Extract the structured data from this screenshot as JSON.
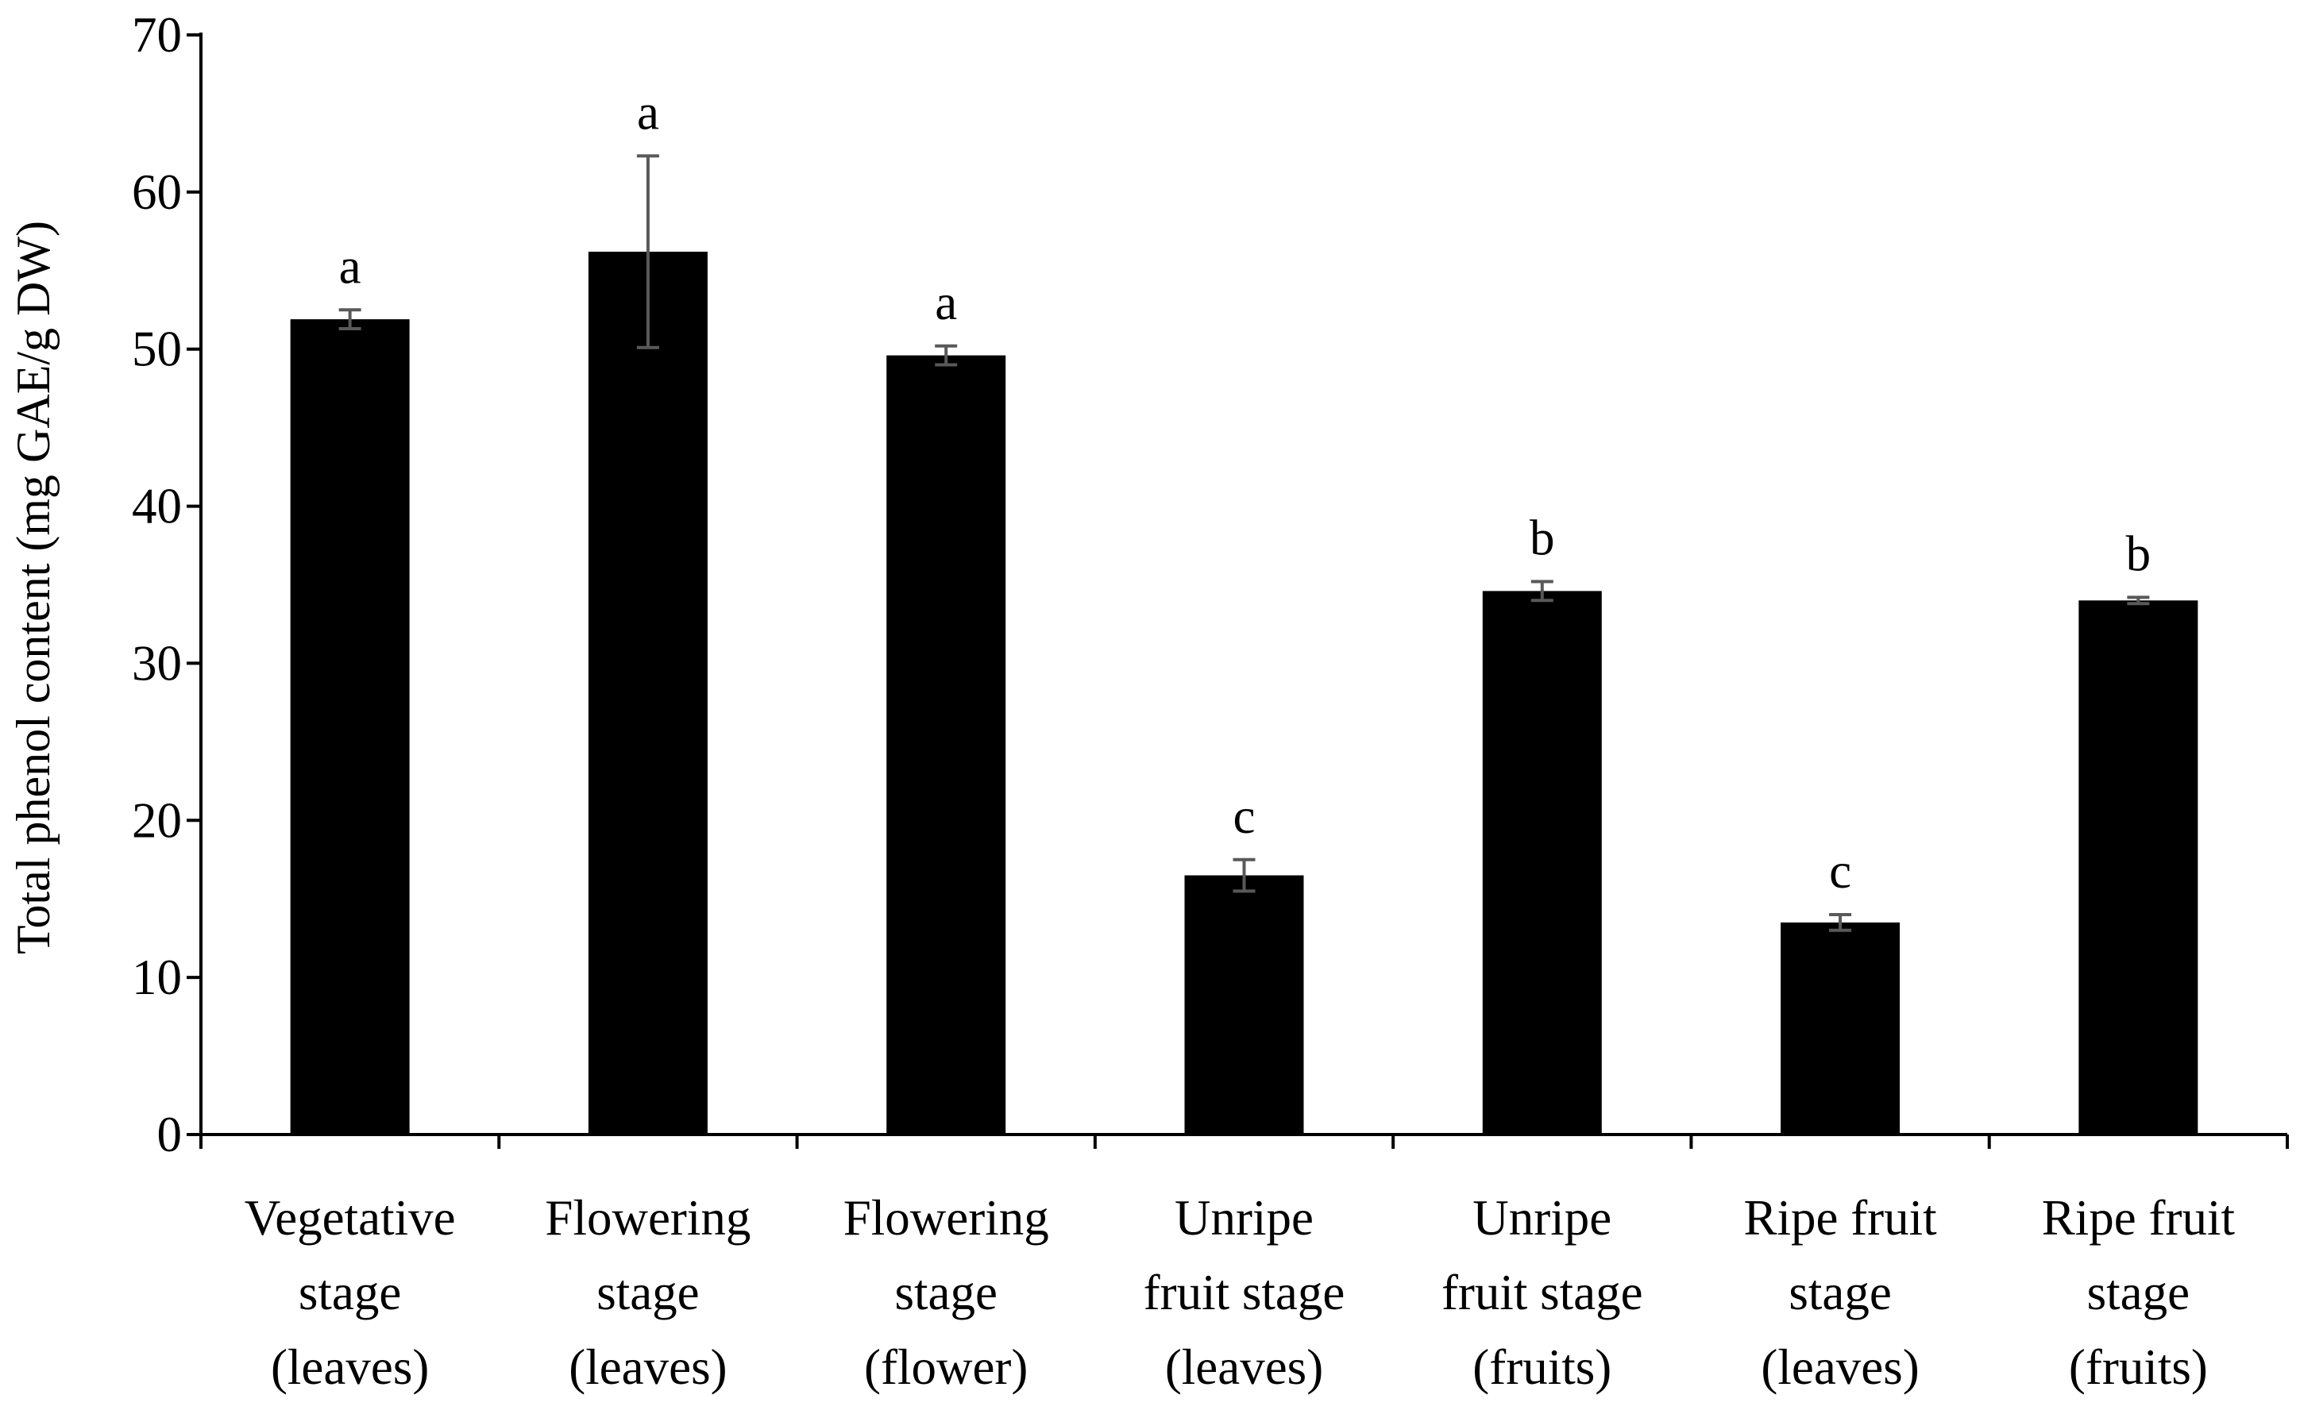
{
  "chart_data": {
    "type": "bar",
    "title": "",
    "xlabel": "",
    "ylabel": "Total phenol content (mg GAE/g DW)",
    "ylim": [
      0,
      70
    ],
    "yticks": [
      0,
      10,
      20,
      30,
      40,
      50,
      60,
      70
    ],
    "ytick_labels": [
      "0",
      "10",
      "20",
      "30",
      "40",
      "50",
      "60",
      "70"
    ],
    "grid": false,
    "legend": "none",
    "bar_color": "#000000",
    "error_bar_color": "#595959",
    "categories": [
      [
        "Vegetative",
        "stage",
        "(leaves)"
      ],
      [
        "Flowering",
        "stage",
        "(leaves)"
      ],
      [
        "Flowering",
        "stage",
        "(flower)"
      ],
      [
        "Unripe",
        "fruit stage",
        "(leaves)"
      ],
      [
        "Unripe",
        "fruit stage",
        "(fruits)"
      ],
      [
        "Ripe fruit",
        "stage",
        "(leaves)"
      ],
      [
        "Ripe fruit",
        "stage",
        "(fruits)"
      ]
    ],
    "values": [
      51.9,
      56.2,
      49.6,
      16.5,
      34.6,
      13.5,
      34.0
    ],
    "errors": [
      0.6,
      6.1,
      0.6,
      1.0,
      0.6,
      0.5,
      0.2
    ],
    "significance_letters": [
      "a",
      "a",
      "a",
      "c",
      "b",
      "c",
      "b"
    ]
  }
}
